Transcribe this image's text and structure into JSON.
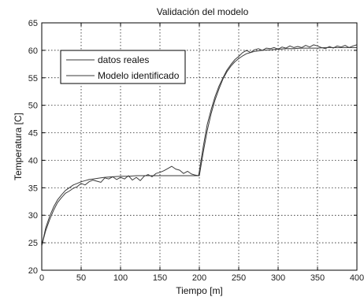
{
  "chart_data": {
    "type": "line",
    "title": "Validación del modelo",
    "xlabel": "Tiempo [m]",
    "ylabel": "Temperatura [C]",
    "xlim": [
      0,
      400
    ],
    "ylim": [
      20,
      65
    ],
    "xticks": [
      0,
      50,
      100,
      150,
      200,
      250,
      300,
      350,
      400
    ],
    "yticks": [
      20,
      25,
      30,
      35,
      40,
      45,
      50,
      55,
      60,
      65
    ],
    "grid": true,
    "legend_position": "top-left",
    "series": [
      {
        "name": "datos reales",
        "color": "#3a3a3a",
        "x": [
          0,
          5,
          10,
          15,
          20,
          25,
          30,
          35,
          40,
          45,
          50,
          55,
          60,
          65,
          70,
          75,
          80,
          85,
          90,
          95,
          100,
          105,
          110,
          115,
          120,
          125,
          130,
          135,
          140,
          145,
          150,
          155,
          160,
          165,
          170,
          175,
          180,
          185,
          190,
          195,
          199,
          200,
          205,
          210,
          215,
          220,
          225,
          230,
          235,
          240,
          245,
          250,
          255,
          260,
          265,
          270,
          275,
          280,
          285,
          290,
          295,
          300,
          305,
          310,
          315,
          320,
          325,
          330,
          335,
          340,
          345,
          350,
          355,
          360,
          365,
          370,
          375,
          380,
          385,
          390,
          395,
          400
        ],
        "y": [
          24.5,
          27.2,
          29.2,
          30.9,
          32.3,
          33.2,
          34.0,
          34.4,
          34.9,
          35.2,
          35.8,
          35.5,
          36.1,
          36.4,
          36.2,
          36.0,
          36.8,
          36.6,
          37.0,
          36.5,
          36.9,
          36.6,
          37.2,
          36.4,
          36.9,
          36.3,
          37.1,
          37.4,
          37.0,
          37.6,
          37.8,
          38.1,
          38.5,
          38.9,
          38.4,
          38.2,
          37.6,
          38.0,
          37.5,
          37.3,
          37.2,
          38.0,
          42.5,
          46.5,
          49.2,
          51.6,
          53.5,
          55.0,
          56.4,
          57.4,
          58.3,
          58.9,
          59.6,
          60.0,
          59.6,
          60.1,
          60.3,
          60.0,
          60.4,
          60.3,
          60.5,
          60.2,
          60.6,
          60.4,
          60.8,
          60.5,
          60.7,
          60.5,
          60.9,
          60.6,
          61.0,
          60.8,
          60.5,
          60.3,
          60.7,
          60.4,
          60.8,
          60.6,
          60.9,
          60.5,
          60.8,
          61.0
        ]
      },
      {
        "name": "Modelo identificado",
        "color": "#3a3a3a",
        "x": [
          0,
          5,
          10,
          15,
          20,
          25,
          30,
          35,
          40,
          45,
          50,
          55,
          60,
          65,
          70,
          75,
          80,
          90,
          100,
          110,
          120,
          130,
          140,
          150,
          160,
          170,
          180,
          190,
          200,
          205,
          210,
          215,
          220,
          225,
          230,
          235,
          240,
          245,
          250,
          255,
          260,
          265,
          270,
          280,
          290,
          300,
          310,
          320,
          330,
          340,
          350,
          360,
          370,
          380,
          390,
          400
        ],
        "y": [
          24.5,
          27.7,
          29.8,
          31.5,
          32.8,
          33.7,
          34.5,
          35.0,
          35.5,
          35.8,
          36.1,
          36.3,
          36.5,
          36.6,
          36.7,
          36.8,
          36.9,
          37.0,
          37.1,
          37.1,
          37.2,
          37.2,
          37.2,
          37.2,
          37.2,
          37.2,
          37.2,
          37.2,
          37.2,
          41.5,
          45.4,
          48.5,
          51.0,
          53.0,
          54.8,
          56.1,
          57.1,
          57.9,
          58.5,
          59.0,
          59.4,
          59.6,
          59.8,
          60.0,
          60.1,
          60.2,
          60.3,
          60.3,
          60.4,
          60.4,
          60.4,
          60.5,
          60.5,
          60.5,
          60.5,
          60.5
        ]
      }
    ]
  }
}
